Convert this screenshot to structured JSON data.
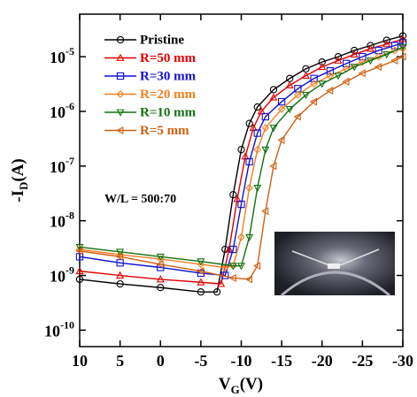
{
  "chart_data": {
    "type": "line",
    "log_y": true,
    "x_label": {
      "text": "V",
      "subscript": "G",
      "suffix": "(V)"
    },
    "y_label": {
      "text": "-I",
      "subscript": "D",
      "suffix": "(A)"
    },
    "annotation": "W/L = 500:70",
    "legend_position": "upper left",
    "xlim": [
      10,
      -30
    ],
    "xticks": [
      10,
      5,
      0,
      -5,
      -10,
      -15,
      -20,
      -25,
      -30
    ],
    "ylim": [
      5e-11,
      6e-05
    ],
    "yticks": [
      {
        "value": 1e-10,
        "label": "10",
        "exponent": "-10"
      },
      {
        "value": 1e-09,
        "label": "10",
        "exponent": "-9"
      },
      {
        "value": 1e-08,
        "label": "10",
        "exponent": "-8"
      },
      {
        "value": 1e-07,
        "label": "10",
        "exponent": "-7"
      },
      {
        "value": 1e-06,
        "label": "10",
        "exponent": "-6"
      },
      {
        "value": 1e-05,
        "label": "10",
        "exponent": "-5"
      }
    ],
    "series": [
      {
        "name": "Pristine",
        "color": "#000000",
        "marker": "circle",
        "x": [
          10,
          5,
          0,
          -5,
          -7,
          -8,
          -9,
          -10,
          -11,
          -12,
          -14,
          -16,
          -18,
          -20,
          -22,
          -24,
          -26,
          -28,
          -30
        ],
        "values": [
          8.5e-10,
          7e-10,
          6e-10,
          5e-10,
          5e-10,
          3e-09,
          3e-08,
          2e-07,
          6e-07,
          1.2e-06,
          2.5e-06,
          4e-06,
          6e-06,
          8e-06,
          1e-05,
          1.3e-05,
          1.6e-05,
          2e-05,
          2.4e-05
        ]
      },
      {
        "name": "R=50 mm",
        "color": "#e00000",
        "marker": "triangle",
        "x": [
          10,
          5,
          0,
          -5,
          -7.5,
          -8.5,
          -9.5,
          -10.5,
          -11.5,
          -12.5,
          -14,
          -16,
          -18,
          -20,
          -22,
          -24,
          -26,
          -28,
          -30
        ],
        "values": [
          1.2e-09,
          1e-09,
          8.5e-10,
          7.5e-10,
          7e-10,
          3e-09,
          2.5e-08,
          1.5e-07,
          5e-07,
          1e-06,
          1.8e-06,
          3e-06,
          4.5e-06,
          6.5e-06,
          8.5e-06,
          1.1e-05,
          1.4e-05,
          1.7e-05,
          2.1e-05
        ]
      },
      {
        "name": "R=30 mm",
        "color": "#1010d0",
        "marker": "square",
        "x": [
          10,
          5,
          0,
          -5,
          -8,
          -9,
          -10,
          -11,
          -12,
          -13,
          -15,
          -17,
          -19,
          -21,
          -23,
          -25,
          -27,
          -29,
          -30
        ],
        "values": [
          2.2e-09,
          1.7e-09,
          1.4e-09,
          1.1e-09,
          1e-09,
          3e-09,
          2e-08,
          1.2e-07,
          4e-07,
          8e-07,
          1.5e-06,
          2.6e-06,
          4e-06,
          5.5e-06,
          7.5e-06,
          1e-05,
          1.3e-05,
          1.6e-05,
          1.8e-05
        ]
      },
      {
        "name": "R=20 mm",
        "color": "#f08020",
        "marker": "diamond",
        "x": [
          10,
          5,
          0,
          -5,
          -8,
          -9,
          -10,
          -11,
          -12,
          -13,
          -15,
          -17,
          -19,
          -21,
          -23,
          -25,
          -27,
          -29,
          -30
        ],
        "values": [
          3e-09,
          2.4e-09,
          2e-09,
          1.6e-09,
          1.4e-09,
          1.5e-09,
          5e-09,
          4e-08,
          2e-07,
          5e-07,
          1.1e-06,
          2e-06,
          3.2e-06,
          4.5e-06,
          6e-06,
          8e-06,
          1e-05,
          1.3e-05,
          1.4e-05
        ]
      },
      {
        "name": "R=10 mm",
        "color": "#107010",
        "marker": "down-triangle",
        "x": [
          10,
          5,
          0,
          -5,
          -9,
          -10,
          -11,
          -12,
          -13,
          -14,
          -16,
          -18,
          -20,
          -22,
          -24,
          -26,
          -28,
          -30
        ],
        "values": [
          3.3e-09,
          2.7e-09,
          2.2e-09,
          1.8e-09,
          1.5e-09,
          1.5e-09,
          5e-09,
          4e-08,
          2e-07,
          5e-07,
          1.1e-06,
          2e-06,
          3.2e-06,
          4.5e-06,
          6.5e-06,
          8.5e-06,
          1.1e-05,
          1.5e-05
        ]
      },
      {
        "name": "R=5 mm",
        "color": "#d06010",
        "marker": "left-triangle",
        "x": [
          10,
          5,
          0,
          -5,
          -9,
          -11,
          -12,
          -13,
          -14,
          -15,
          -17,
          -19,
          -21,
          -23,
          -25,
          -27,
          -29,
          -30
        ],
        "values": [
          2.8e-09,
          2.2e-09,
          1.6e-09,
          1.2e-09,
          9e-10,
          8.5e-10,
          1.5e-09,
          1.5e-08,
          1e-07,
          3e-07,
          8e-07,
          1.5e-06,
          2.4e-06,
          3.5e-06,
          5e-06,
          6.5e-06,
          8.5e-06,
          1e-05
        ]
      }
    ]
  }
}
